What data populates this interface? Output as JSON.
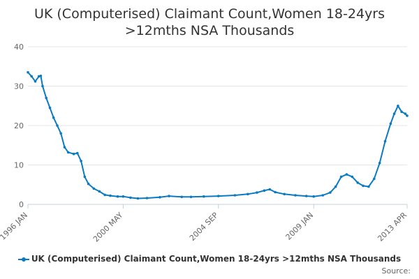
{
  "title_lines": [
    "UK (Computerised) Claimant Count,Women 18-24yrs",
    ">12mths NSA Thousands"
  ],
  "legend_label": "UK (Computerised) Claimant Count,Women 18-24yrs >12mths NSA Thousands",
  "source_label": "Source:",
  "colors": {
    "series": "#0a7bc2",
    "grid": "#e6e6e6",
    "axis": "#c0d0e0"
  },
  "chart_data": {
    "type": "line",
    "title": "UK (Computerised) Claimant Count,Women 18-24yrs >12mths NSA Thousands",
    "xlabel": "",
    "ylabel": "",
    "ylim": [
      0,
      40
    ],
    "yticks": [
      0,
      10,
      20,
      30,
      40
    ],
    "xlim": [
      "1996-01",
      "2013-04"
    ],
    "xtick_labels": [
      {
        "label": "1996 JAN",
        "date": "1996-01"
      },
      {
        "label": "2000 MAY",
        "date": "2000-05"
      },
      {
        "label": "2004 SEP",
        "date": "2004-09"
      },
      {
        "label": "2009 JAN",
        "date": "2009-01"
      },
      {
        "label": "2013 APR",
        "date": "2013-04"
      }
    ],
    "grid": true,
    "legend": "bottom",
    "series": [
      {
        "name": "UK (Computerised) Claimant Count,Women 18-24yrs >12mths NSA Thousands",
        "points": [
          [
            "1996-01",
            33.5
          ],
          [
            "1996-03",
            32.5
          ],
          [
            "1996-05",
            31.2
          ],
          [
            "1996-07",
            32.5
          ],
          [
            "1996-08",
            32.6
          ],
          [
            "1996-09",
            30.0
          ],
          [
            "1996-11",
            27.0
          ],
          [
            "1997-01",
            24.5
          ],
          [
            "1997-03",
            22.0
          ],
          [
            "1997-05",
            20.0
          ],
          [
            "1997-07",
            18.0
          ],
          [
            "1997-09",
            14.5
          ],
          [
            "1997-11",
            13.2
          ],
          [
            "1998-02",
            12.8
          ],
          [
            "1998-04",
            13.0
          ],
          [
            "1998-06",
            11.0
          ],
          [
            "1998-08",
            7.0
          ],
          [
            "1998-10",
            5.2
          ],
          [
            "1999-01",
            4.0
          ],
          [
            "1999-04",
            3.3
          ],
          [
            "1999-07",
            2.4
          ],
          [
            "1999-10",
            2.2
          ],
          [
            "2000-02",
            2.0
          ],
          [
            "2000-05",
            2.0
          ],
          [
            "2000-09",
            1.7
          ],
          [
            "2001-01",
            1.5
          ],
          [
            "2001-06",
            1.6
          ],
          [
            "2002-01",
            1.8
          ],
          [
            "2002-06",
            2.1
          ],
          [
            "2003-01",
            1.9
          ],
          [
            "2003-06",
            1.9
          ],
          [
            "2004-01",
            2.0
          ],
          [
            "2004-09",
            2.1
          ],
          [
            "2005-06",
            2.3
          ],
          [
            "2006-01",
            2.6
          ],
          [
            "2006-06",
            3.0
          ],
          [
            "2006-10",
            3.5
          ],
          [
            "2007-01",
            3.8
          ],
          [
            "2007-04",
            3.1
          ],
          [
            "2007-09",
            2.6
          ],
          [
            "2008-03",
            2.3
          ],
          [
            "2008-09",
            2.1
          ],
          [
            "2009-01",
            2.0
          ],
          [
            "2009-06",
            2.3
          ],
          [
            "2009-10",
            3.0
          ],
          [
            "2010-01",
            4.5
          ],
          [
            "2010-04",
            7.0
          ],
          [
            "2010-07",
            7.6
          ],
          [
            "2010-10",
            7.0
          ],
          [
            "2011-01",
            5.5
          ],
          [
            "2011-04",
            4.7
          ],
          [
            "2011-07",
            4.5
          ],
          [
            "2011-10",
            6.5
          ],
          [
            "2012-01",
            10.5
          ],
          [
            "2012-04",
            16.0
          ],
          [
            "2012-07",
            20.5
          ],
          [
            "2012-09",
            23.0
          ],
          [
            "2012-11",
            25.0
          ],
          [
            "2013-01",
            23.5
          ],
          [
            "2013-03",
            23.0
          ],
          [
            "2013-04",
            22.5
          ]
        ]
      }
    ]
  }
}
